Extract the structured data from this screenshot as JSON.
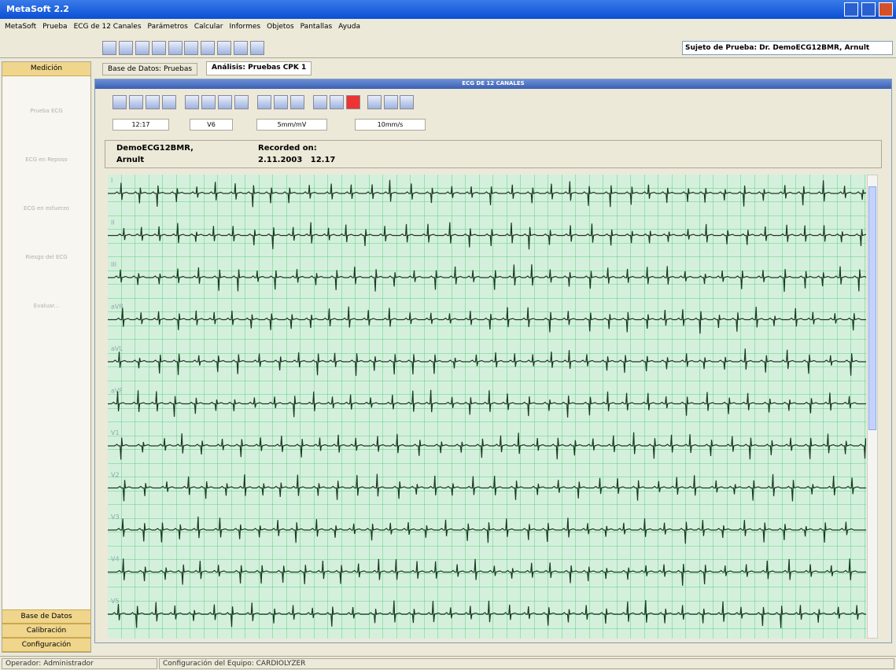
{
  "window": {
    "title": "MetaSoft 2.2"
  },
  "menu": [
    "MetaSoft",
    "Prueba",
    "ECG de 12 Canales",
    "Parámetros",
    "Calcular",
    "Informes",
    "Objetos",
    "Pantallas",
    "Ayuda"
  ],
  "toolbar": {
    "subject": "Sujeto de Prueba: Dr. DemoECG12BMR, Arnult"
  },
  "sidebar": {
    "header": "Medición",
    "items": [
      "Prueba ECG",
      "ECG en Reposo",
      "ECG en esfuerzo",
      "Riesgo del ECG",
      "Evaluar..."
    ],
    "bottom": [
      "Base de Datos",
      "Calibración",
      "Configuración"
    ]
  },
  "tabs": [
    "Base de Datos: Pruebas",
    "Análisis: Pruebas CPK 1"
  ],
  "panel": {
    "title": "ECG DE 12 CANALES",
    "fields": [
      "12:17",
      "V6",
      "5mm/mV",
      "10mm/s"
    ],
    "patient": {
      "name": "DemoECG12BMR,",
      "surname": "Arnult",
      "recorded_label": "Recorded on:",
      "recorded": "2.11.2003   12.17"
    },
    "leads": [
      "I",
      "II",
      "III",
      "aVR",
      "aVL",
      "aVF",
      "V1",
      "V2",
      "V3",
      "V4",
      "V5"
    ]
  },
  "status": [
    "Operador: Administrador",
    "Configuración del Equipo: CARDIOLYZER"
  ]
}
